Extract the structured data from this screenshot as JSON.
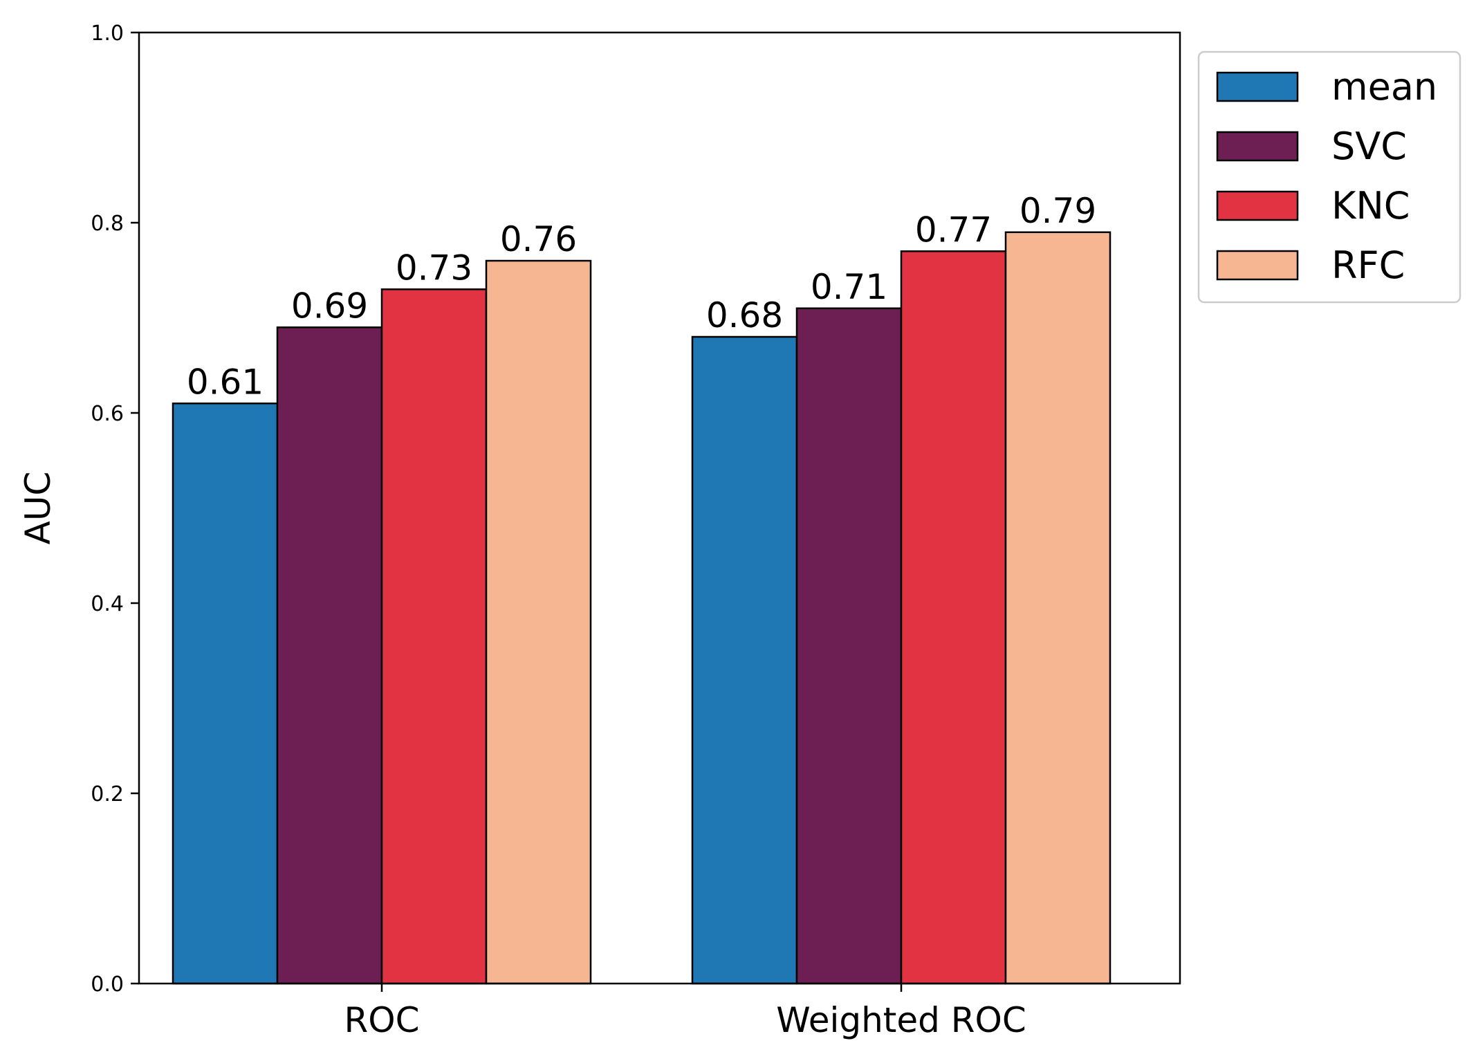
{
  "chart_data": {
    "type": "bar",
    "categories": [
      "ROC",
      "Weighted ROC"
    ],
    "series": [
      {
        "name": "mean",
        "color": "#1f77b4",
        "values": [
          0.61,
          0.68
        ],
        "labels": [
          "0.61",
          "0.68"
        ]
      },
      {
        "name": "SVC",
        "color": "#6d1f53",
        "values": [
          0.69,
          0.71
        ],
        "labels": [
          "0.69",
          "0.71"
        ]
      },
      {
        "name": "KNC",
        "color": "#e23343",
        "values": [
          0.73,
          0.77
        ],
        "labels": [
          "0.73",
          "0.77"
        ]
      },
      {
        "name": "RFC",
        "color": "#f6b691",
        "values": [
          0.76,
          0.79
        ],
        "labels": [
          "0.76",
          "0.79"
        ]
      }
    ],
    "xlabel": "",
    "ylabel": "AUC",
    "ylim": [
      0,
      1.0
    ],
    "yticks": [
      0.0,
      0.2,
      0.4,
      0.6,
      0.8,
      1.0
    ],
    "ytick_labels": [
      "0.0",
      "0.2",
      "0.4",
      "0.6",
      "0.8",
      "1.0"
    ],
    "grid": false,
    "legend_position": "outside-top-right"
  }
}
